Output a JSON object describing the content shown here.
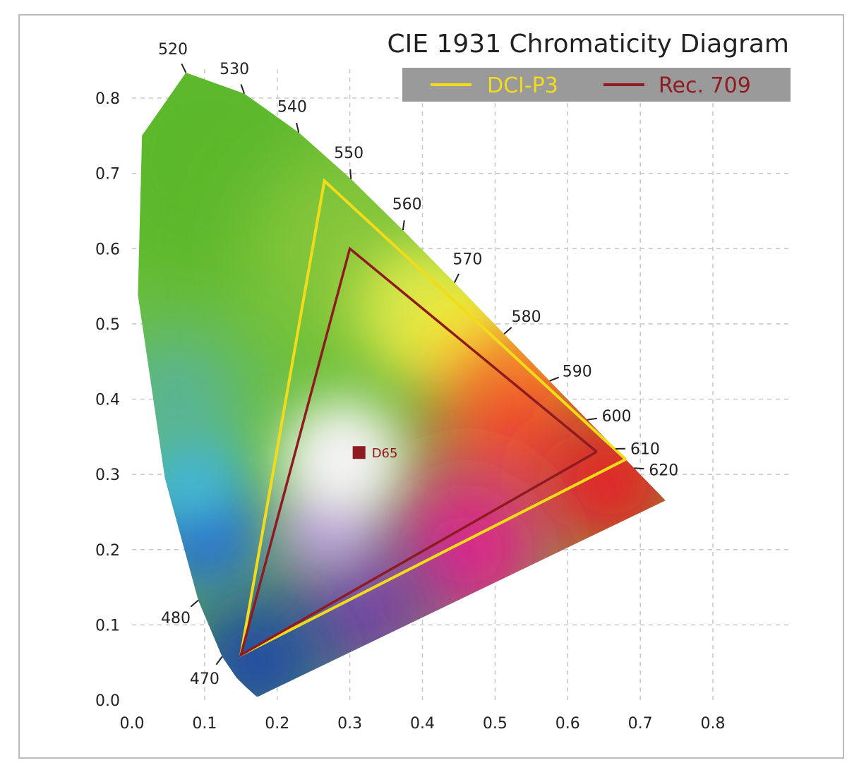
{
  "chart_data": {
    "type": "scatter",
    "title": "CIE 1931 Chromaticity Diagram",
    "xlabel": "",
    "ylabel": "",
    "xlim": [
      0.0,
      0.8
    ],
    "ylim": [
      0.0,
      0.8
    ],
    "x_ticks": [
      "0.0",
      "0.1",
      "0.2",
      "0.3",
      "0.4",
      "0.5",
      "0.6",
      "0.7",
      "0.8"
    ],
    "y_ticks": [
      "0.0",
      "0.1",
      "0.2",
      "0.3",
      "0.4",
      "0.5",
      "0.6",
      "0.7",
      "0.8"
    ],
    "grid": true,
    "legend_position": "top-right",
    "series": [
      {
        "name": "DCI-P3",
        "color": "#f2dc1a",
        "points": [
          [
            0.68,
            0.32
          ],
          [
            0.265,
            0.69
          ],
          [
            0.15,
            0.06
          ],
          [
            0.68,
            0.32
          ]
        ]
      },
      {
        "name": "Rec. 709",
        "color": "#8e1b22",
        "points": [
          [
            0.64,
            0.33
          ],
          [
            0.3,
            0.6
          ],
          [
            0.15,
            0.06
          ],
          [
            0.64,
            0.33
          ]
        ]
      }
    ],
    "white_point": {
      "label": "D65",
      "x": 0.3127,
      "y": 0.329,
      "color": "#8e1b22"
    },
    "spectral_locus_labels": [
      {
        "label": "470",
        "x": 0.1241,
        "y": 0.0578
      },
      {
        "label": "480",
        "x": 0.0913,
        "y": 0.1327
      },
      {
        "label": "520",
        "x": 0.0743,
        "y": 0.8338
      },
      {
        "label": "530",
        "x": 0.1547,
        "y": 0.8059
      },
      {
        "label": "540",
        "x": 0.2296,
        "y": 0.7543
      },
      {
        "label": "550",
        "x": 0.3016,
        "y": 0.6923
      },
      {
        "label": "560",
        "x": 0.3731,
        "y": 0.6245
      },
      {
        "label": "570",
        "x": 0.4441,
        "y": 0.5547
      },
      {
        "label": "580",
        "x": 0.5125,
        "y": 0.4866
      },
      {
        "label": "590",
        "x": 0.5752,
        "y": 0.4242
      },
      {
        "label": "600",
        "x": 0.627,
        "y": 0.3725
      },
      {
        "label": "610",
        "x": 0.6658,
        "y": 0.334
      },
      {
        "label": "620",
        "x": 0.6915,
        "y": 0.3083
      }
    ]
  }
}
